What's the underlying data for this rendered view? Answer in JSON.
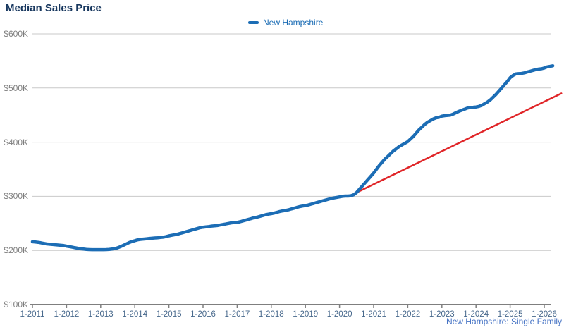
{
  "title": "Median Sales Price",
  "legend": {
    "label": "New Hampshire",
    "color": "#1C6DB5"
  },
  "footnote": "New Hampshire: Single Family",
  "colors": {
    "series_blue": "#1C6DB5",
    "trend_red": "#E02528",
    "gridline": "#C9C9C9",
    "axis": "#7F7F7F",
    "y_label": "#7F7F7F",
    "x_label": "#47688C",
    "title": "#17375E",
    "footnote": "#4472C4"
  },
  "chart_data": {
    "type": "line",
    "title": "Median Sales Price",
    "ylabel": "",
    "xlabel": "",
    "ylim_k": [
      100,
      600
    ],
    "grid": "horizontal",
    "legend_position": "top-center",
    "y_ticks": [
      {
        "label": "$600K",
        "value_k": 600
      },
      {
        "label": "$500K",
        "value_k": 500
      },
      {
        "label": "$400K",
        "value_k": 400
      },
      {
        "label": "$300K",
        "value_k": 300
      },
      {
        "label": "$200K",
        "value_k": 200
      },
      {
        "label": "$100K",
        "value_k": 100
      }
    ],
    "x_ticks": [
      {
        "label": "1-2011",
        "year": 2011
      },
      {
        "label": "1-2012",
        "year": 2012
      },
      {
        "label": "1-2013",
        "year": 2013
      },
      {
        "label": "1-2014",
        "year": 2014
      },
      {
        "label": "1-2015",
        "year": 2015
      },
      {
        "label": "1-2016",
        "year": 2016
      },
      {
        "label": "1-2017",
        "year": 2017
      },
      {
        "label": "1-2018",
        "year": 2018
      },
      {
        "label": "1-2019",
        "year": 2019
      },
      {
        "label": "1-2020",
        "year": 2020
      },
      {
        "label": "1-2021",
        "year": 2021
      },
      {
        "label": "1-2022",
        "year": 2022
      },
      {
        "label": "1-2023",
        "year": 2023
      },
      {
        "label": "1-2024",
        "year": 2024
      },
      {
        "label": "1-2025",
        "year": 2025
      },
      {
        "label": "1-2026",
        "year": 2026
      }
    ],
    "series": [
      {
        "name": "New Hampshire",
        "color": "#1C6DB5",
        "start_date": "2011-01",
        "interval": "monthly",
        "values_k": [
          216,
          215.5,
          215,
          214,
          213,
          212,
          211.5,
          211,
          210.5,
          210,
          209.5,
          209,
          208,
          207,
          206,
          205,
          204,
          203,
          202.5,
          202,
          201.6,
          201.4,
          201.4,
          201.4,
          201.4,
          201.4,
          201.6,
          202,
          202.5,
          203.5,
          205,
          207,
          209.5,
          212,
          214.5,
          216.5,
          218,
          219.5,
          220.5,
          221,
          221.5,
          222,
          222.5,
          223,
          223.5,
          224,
          224.5,
          225.5,
          227,
          228,
          229,
          230,
          231.5,
          233,
          234.5,
          236,
          237.5,
          239,
          240.5,
          242,
          243,
          243.5,
          244,
          245,
          245.5,
          246,
          247,
          248,
          249,
          250,
          251,
          251.5,
          252,
          253,
          254.5,
          256,
          257.5,
          259,
          260.5,
          261.5,
          263,
          264.5,
          266,
          267,
          268,
          269,
          270.5,
          272,
          273,
          274,
          275,
          276.5,
          278,
          279.5,
          281,
          282,
          283,
          284,
          285.5,
          287,
          288.5,
          290,
          291.5,
          293,
          294.5,
          296,
          297,
          298,
          299,
          300,
          300.5,
          300.5,
          301,
          303,
          307,
          313,
          319,
          325,
          331,
          337,
          343,
          350,
          357,
          363,
          369,
          374,
          379,
          384,
          388,
          392,
          395,
          398,
          401,
          406,
          411,
          417,
          423,
          428,
          433,
          437,
          440,
          443,
          445,
          446,
          448,
          449,
          449.5,
          450,
          452,
          454.5,
          457,
          459,
          461,
          463,
          464,
          464.5,
          465,
          466,
          468,
          471,
          474,
          478,
          483,
          488,
          494,
          500,
          506,
          512,
          519,
          523,
          526,
          526.5,
          527,
          528,
          529.5,
          531,
          532.5,
          534,
          535,
          535.5,
          537,
          539,
          540,
          541
        ]
      },
      {
        "name": "Trend",
        "type": "straight-projection",
        "color": "#E02528",
        "points": [
          {
            "date": "2020-07",
            "value_k": 307
          },
          {
            "date": "2026-07",
            "value_k": 490
          }
        ]
      }
    ]
  }
}
